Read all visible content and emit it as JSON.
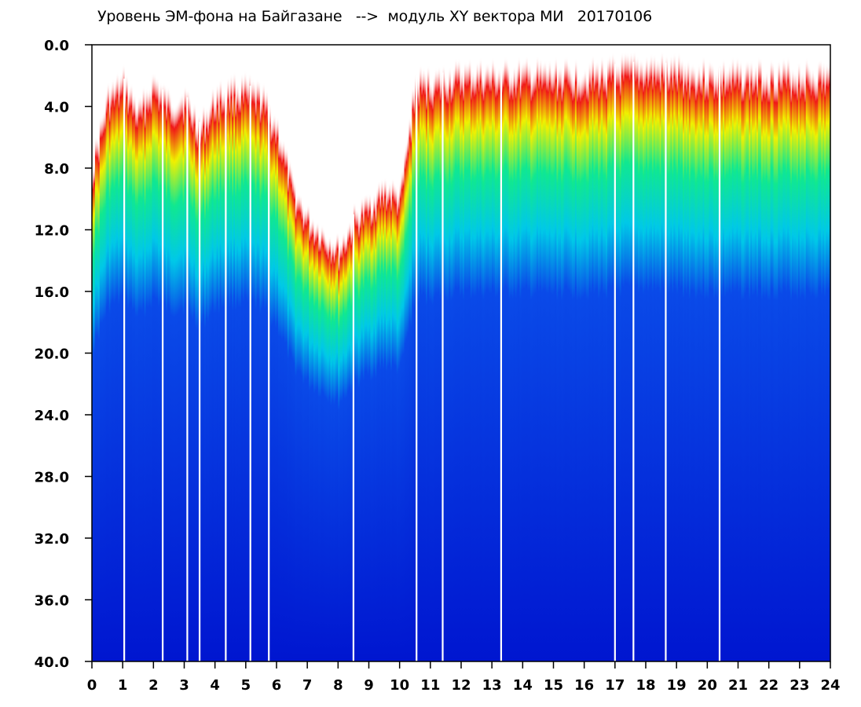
{
  "chart_data": {
    "type": "heatmap",
    "title": "Уровень ЭМ-фона на Байгазане   -->  модуль XY вектора МИ   20170106",
    "xlabel": "",
    "ylabel": "",
    "xlim": [
      0,
      24
    ],
    "ylim": [
      40.0,
      0.0
    ],
    "y_inverted": true,
    "x_ticks": [
      "0",
      "1",
      "2",
      "3",
      "4",
      "5",
      "6",
      "7",
      "8",
      "9",
      "10",
      "11",
      "12",
      "13",
      "14",
      "15",
      "16",
      "17",
      "18",
      "19",
      "20",
      "21",
      "22",
      "23",
      "24"
    ],
    "y_ticks": [
      "0.0",
      "4.0",
      "8.0",
      "12.0",
      "16.0",
      "20.0",
      "24.0",
      "28.0",
      "32.0",
      "36.0",
      "40.0"
    ],
    "colormap": [
      "#0018d8",
      "#00c8e8",
      "#10e890",
      "#f0f000",
      "#f01818"
    ],
    "grid": false,
    "upper_boundary_profile": {
      "hours": [
        0,
        0.5,
        1,
        1.5,
        2,
        2.5,
        3,
        3.5,
        4,
        4.5,
        5,
        5.5,
        6,
        6.5,
        7,
        7.5,
        8,
        8.5,
        9,
        9.5,
        10,
        10.5,
        11,
        12,
        14,
        16,
        18,
        20,
        22,
        24
      ],
      "y_top": [
        7.5,
        3.0,
        2.0,
        4.0,
        2.0,
        3.5,
        3.0,
        5.0,
        3.0,
        2.5,
        2.5,
        3.0,
        5.0,
        9.0,
        11.0,
        12.0,
        13.0,
        11.0,
        10.0,
        9.0,
        9.5,
        2.0,
        2.0,
        1.5,
        1.5,
        1.5,
        1.0,
        1.5,
        1.5,
        1.5
      ]
    },
    "white_gap_hours": [
      1.05,
      2.3,
      3.1,
      3.5,
      4.35,
      5.15,
      5.75,
      8.5,
      10.55,
      11.4,
      13.3,
      17.0,
      17.6,
      18.65,
      20.4
    ],
    "annotations": []
  }
}
